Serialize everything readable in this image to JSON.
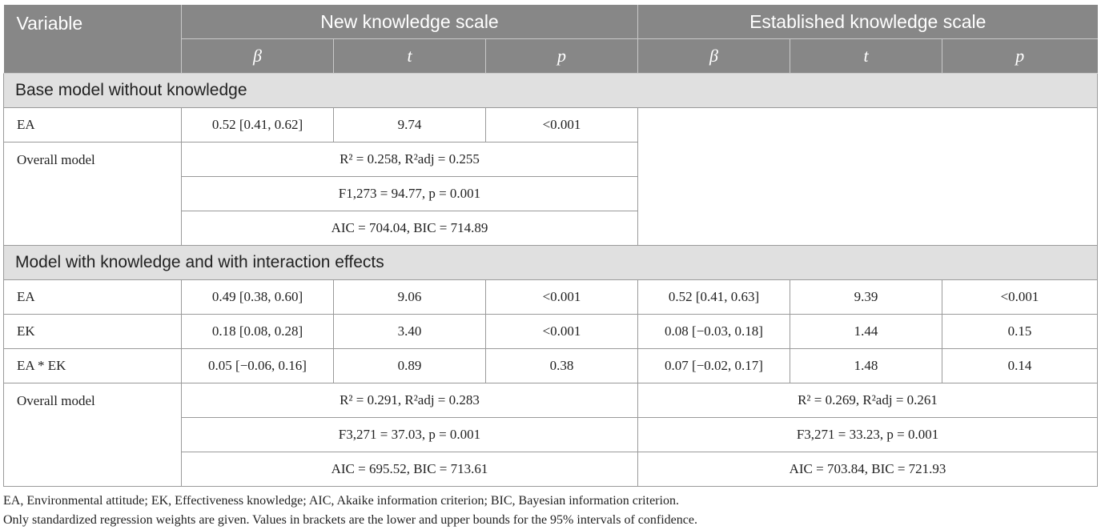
{
  "table": {
    "header": {
      "variable": "Variable",
      "group_new": "New knowledge scale",
      "group_established": "Established knowledge scale",
      "beta": "β",
      "t": "t",
      "p": "p"
    },
    "sections": {
      "base": "Base model without knowledge",
      "interaction": "Model with knowledge and with interaction effects"
    },
    "base_rows": [
      {
        "label": "EA",
        "new": [
          "0.52 [0.41, 0.62]",
          "9.74",
          "<0.001"
        ]
      }
    ],
    "base_overall": {
      "label": "Overall model",
      "r2": "R² = 0.258, R²adj = 0.255",
      "f": "F1,273 = 94.77, p = 0.001",
      "ic": "AIC = 704.04, BIC = 714.89"
    },
    "interaction_rows": [
      {
        "label": "EA",
        "new": [
          "0.49 [0.38, 0.60]",
          "9.06",
          "<0.001"
        ],
        "est": [
          "0.52 [0.41, 0.63]",
          "9.39",
          "<0.001"
        ]
      },
      {
        "label": "EK",
        "new": [
          "0.18 [0.08, 0.28]",
          "3.40",
          "<0.001"
        ],
        "est": [
          "0.08 [−0.03, 0.18]",
          "1.44",
          "0.15"
        ]
      },
      {
        "label": "EA * EK",
        "new": [
          "0.05 [−0.06, 0.16]",
          "0.89",
          "0.38"
        ],
        "est": [
          "0.07 [−0.02, 0.17]",
          "1.48",
          "0.14"
        ]
      }
    ],
    "interaction_overall": {
      "label": "Overall model",
      "new": {
        "r2": "R² = 0.291, R²adj = 0.283",
        "f": "F3,271 = 37.03, p = 0.001",
        "ic": "AIC = 695.52, BIC = 713.61"
      },
      "est": {
        "r2": "R² = 0.269, R²adj = 0.261",
        "f": "F3,271 = 33.23, p = 0.001",
        "ic": "AIC = 703.84, BIC = 721.93"
      }
    }
  },
  "notes": [
    "EA, Environmental attitude; EK, Effectiveness knowledge; AIC, Akaike information criterion; BIC, Bayesian information criterion.",
    "Only standardized regression weights are given. Values in brackets are the lower and upper bounds for the 95% intervals of confidence."
  ]
}
